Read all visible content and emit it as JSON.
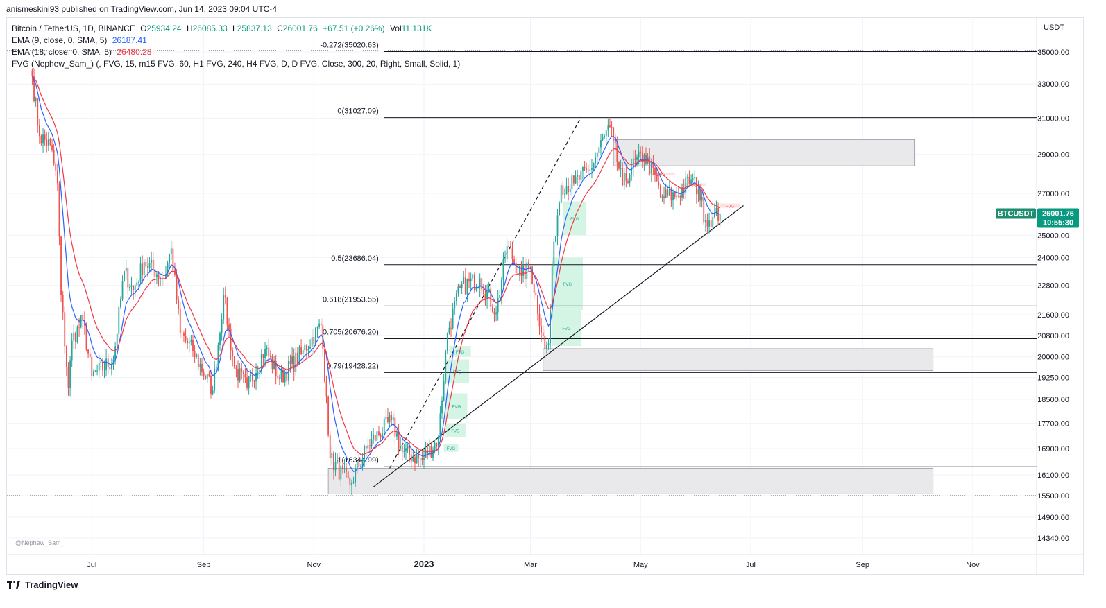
{
  "header": {
    "published": "anismeskini93 published on TradingView.com, Jun 14, 2023 09:04 UTC-4"
  },
  "legend": {
    "symbol_line": "Bitcoin / TetherUS, 1D, BINANCE",
    "o_label": "O",
    "o": "25934.24",
    "h_label": "H",
    "h": "26085.33",
    "l_label": "L",
    "l": "25837.13",
    "c_label": "C",
    "c": "26001.76",
    "change": "+67.51 (+0.26%)",
    "vol_label": "Vol",
    "vol": "11.131K",
    "ema9": "EMA (9, close, 0, SMA, 5)",
    "ema9_value": "26187.41",
    "ema18": "EMA (18, close, 0, SMA, 5)",
    "ema18_value": "26480.28",
    "fvg": "FVG (Nephew_Sam_) (, FVG, 15, m15 FVG, 60, H1 FVG, 240, H4 FVG, D, D FVG, Close, 300, 20, Right, Small, Solid, 1)"
  },
  "watermark": "@Nephew_Sam_",
  "footer": {
    "brand": "TradingView"
  },
  "colors": {
    "up": "#26a69a",
    "down": "#ef5350",
    "ema9": "#2962ff",
    "ema18": "#f23645",
    "fvg_bull": "#d4f5e4",
    "fvg_bear": "#fde2e2",
    "zone": "#e9e9eb",
    "price_badge": "#089981",
    "symbol_badge": "#1e8c6e"
  },
  "chart_data": {
    "type": "candlestick",
    "symbol": "BTCUSDT",
    "currency": "USDT",
    "ylim": [
      14000,
      36500
    ],
    "y_ticks": [
      "35000.00",
      "33000.00",
      "31000.00",
      "29000.00",
      "27000.00",
      "25000.00",
      "24000.00",
      "22800.00",
      "21600.00",
      "20800.00",
      "20000.00",
      "19250.00",
      "18500.00",
      "17700.00",
      "16900.00",
      "16100.00",
      "15500.00",
      "14900.00",
      "14340.00"
    ],
    "x_ticks": [
      "Jul",
      "Sep",
      "Nov",
      "2023",
      "Mar",
      "May",
      "Jul",
      "Sep",
      "Nov"
    ],
    "last_price": "26001.76",
    "countdown": "10:55:30",
    "symbol_label": "BTCUSDT",
    "fib_levels": [
      {
        "label": "-0.272(35020.63)",
        "value": 35020.63
      },
      {
        "label": "0(31027.09)",
        "value": 31027.09
      },
      {
        "label": "0.5(23686.04)",
        "value": 23686.04
      },
      {
        "label": "0.618(21953.55)",
        "value": 21953.55
      },
      {
        "label": "0.705(20676.20)",
        "value": 20676.2
      },
      {
        "label": "0.79(19428.22)",
        "value": 19428.22
      },
      {
        "label": "1(16344.99)",
        "value": 16344.99
      }
    ],
    "zones": [
      {
        "start": "2023-04-16",
        "end": "2023-09-30",
        "top": 29800,
        "bottom": 28400
      },
      {
        "start": "2023-03-08",
        "end": "2023-10-10",
        "top": 20300,
        "bottom": 19500
      },
      {
        "start": "2022-11-09",
        "end": "2023-10-10",
        "top": 16300,
        "bottom": 15550
      }
    ],
    "fvg_label": "FVG",
    "fvg_bull": [
      {
        "start": "2023-03-19",
        "end": "2023-04-01",
        "top": 26600,
        "bottom": 25000
      },
      {
        "start": "2023-03-13",
        "end": "2023-03-30",
        "top": 24000,
        "bottom": 21800
      },
      {
        "start": "2023-03-13",
        "end": "2023-03-29",
        "top": 21800,
        "bottom": 20400
      },
      {
        "start": "2023-01-15",
        "end": "2023-01-27",
        "top": 20400,
        "bottom": 20000
      },
      {
        "start": "2023-01-13",
        "end": "2023-01-26",
        "top": 19900,
        "bottom": 19050
      },
      {
        "start": "2023-01-13",
        "end": "2023-01-25",
        "top": 18700,
        "bottom": 17850
      },
      {
        "start": "2023-01-13",
        "end": "2023-01-24",
        "top": 17700,
        "bottom": 17250
      },
      {
        "start": "2023-01-12",
        "end": "2023-01-20",
        "top": 17050,
        "bottom": 16800
      }
    ],
    "fvg_bear": [
      {
        "start": "2023-05-05",
        "end": "2023-05-20",
        "top": 28050,
        "bottom": 27900
      },
      {
        "start": "2023-05-23",
        "end": "2023-06-06",
        "top": 27500,
        "bottom": 27350
      },
      {
        "start": "2023-06-14",
        "end": "2023-06-25",
        "top": 26500,
        "bottom": 26300
      }
    ],
    "trendline": {
      "x1": "2022-12-04",
      "y1": 15750,
      "x2": "2023-06-27",
      "y2": 26400
    },
    "dashed_line": {
      "x1": "2022-12-13",
      "y1": 16300,
      "x2": "2023-03-29",
      "y2": 31050
    },
    "series": [
      {
        "name": "EMA (9, close, 0, SMA, 5)",
        "role": "ema9"
      },
      {
        "name": "EMA (18, close, 0, SMA, 5)",
        "role": "ema18"
      }
    ],
    "ohlc_anchors": [
      [
        "2022-05-29",
        33500
      ],
      [
        "2022-06-02",
        30000
      ],
      [
        "2022-06-08",
        29500
      ],
      [
        "2022-06-12",
        27500
      ],
      [
        "2022-06-14",
        22400
      ],
      [
        "2022-06-18",
        18900
      ],
      [
        "2022-06-20",
        20600
      ],
      [
        "2022-06-26",
        21400
      ],
      [
        "2022-07-01",
        19300
      ],
      [
        "2022-07-13",
        19900
      ],
      [
        "2022-07-19",
        23400
      ],
      [
        "2022-07-24",
        22600
      ],
      [
        "2022-07-30",
        23800
      ],
      [
        "2022-08-10",
        23100
      ],
      [
        "2022-08-14",
        24400
      ],
      [
        "2022-08-19",
        20900
      ],
      [
        "2022-08-26",
        20200
      ],
      [
        "2022-09-06",
        18800
      ],
      [
        "2022-09-12",
        22400
      ],
      [
        "2022-09-18",
        19600
      ],
      [
        "2022-09-25",
        18900
      ],
      [
        "2022-10-05",
        20300
      ],
      [
        "2022-10-13",
        19200
      ],
      [
        "2022-10-25",
        20100
      ],
      [
        "2022-11-05",
        21200
      ],
      [
        "2022-11-08",
        18600
      ],
      [
        "2022-11-10",
        16600
      ],
      [
        "2022-11-21",
        15800
      ],
      [
        "2022-12-01",
        17000
      ],
      [
        "2022-12-14",
        17800
      ],
      [
        "2022-12-20",
        16800
      ],
      [
        "2022-12-31",
        16550
      ],
      [
        "2023-01-09",
        17200
      ],
      [
        "2023-01-14",
        20900
      ],
      [
        "2023-01-21",
        22700
      ],
      [
        "2023-02-01",
        23100
      ],
      [
        "2023-02-10",
        21700
      ],
      [
        "2023-02-16",
        24500
      ],
      [
        "2023-02-24",
        23200
      ],
      [
        "2023-03-01",
        23600
      ],
      [
        "2023-03-09",
        20300
      ],
      [
        "2023-03-11",
        20500
      ],
      [
        "2023-03-14",
        24700
      ],
      [
        "2023-03-18",
        27400
      ],
      [
        "2023-03-25",
        27500
      ],
      [
        "2023-04-03",
        28200
      ],
      [
        "2023-04-11",
        30000
      ],
      [
        "2023-04-14",
        30500
      ],
      [
        "2023-04-21",
        27400
      ],
      [
        "2023-04-26",
        28300
      ],
      [
        "2023-05-03",
        29000
      ],
      [
        "2023-05-10",
        27600
      ],
      [
        "2023-05-12",
        26800
      ],
      [
        "2023-05-21",
        26900
      ],
      [
        "2023-05-29",
        27700
      ],
      [
        "2023-06-02",
        27200
      ],
      [
        "2023-06-06",
        25700
      ],
      [
        "2023-06-10",
        25850
      ],
      [
        "2023-06-14",
        26001.76
      ]
    ]
  }
}
